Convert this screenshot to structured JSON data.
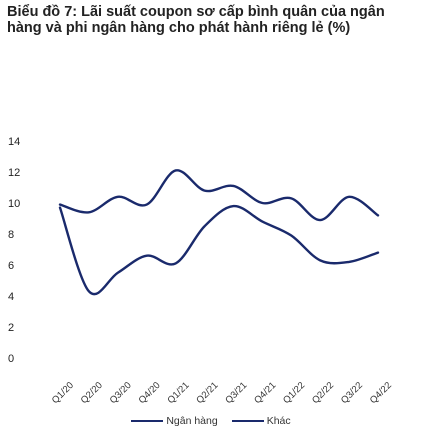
{
  "title": "Biểu đồ 7: Lãi suất coupon sơ cấp bình quân của ngân hàng và phi ngân hàng cho phát hành riêng lẻ (%)",
  "chart_data": {
    "type": "line",
    "title": "Biểu đồ 7: Lãi suất coupon sơ cấp bình quân của ngân hàng và phi ngân hàng cho phát hành riêng lẻ (%)",
    "xlabel": "",
    "ylabel": "",
    "ylim": [
      0,
      14
    ],
    "yticks": [
      "0",
      "2",
      "4",
      "6",
      "8",
      "10",
      "12",
      "14"
    ],
    "categories": [
      "Q1/20",
      "Q2/20",
      "Q3/20",
      "Q4/20",
      "Q1/21",
      "Q2/21",
      "Q3/21",
      "Q4/21",
      "Q1/22",
      "Q2/22",
      "Q3/22",
      "Q4/22"
    ],
    "legend_position": "bottom",
    "series": [
      {
        "name": "Ngân hàng",
        "color": "#1a2a6c",
        "values": [
          9.7,
          4.3,
          5.5,
          6.6,
          6.1,
          8.5,
          9.8,
          8.8,
          7.9,
          6.3,
          6.2,
          6.8
        ]
      },
      {
        "name": "Khác",
        "color": "#1a2a6c",
        "values": [
          9.9,
          9.4,
          10.4,
          9.9,
          12.1,
          10.8,
          11.1,
          10.0,
          10.3,
          8.9,
          10.4,
          9.2
        ]
      }
    ]
  },
  "legend": {
    "bank": "Ngân hàng",
    "other": "Khác"
  }
}
